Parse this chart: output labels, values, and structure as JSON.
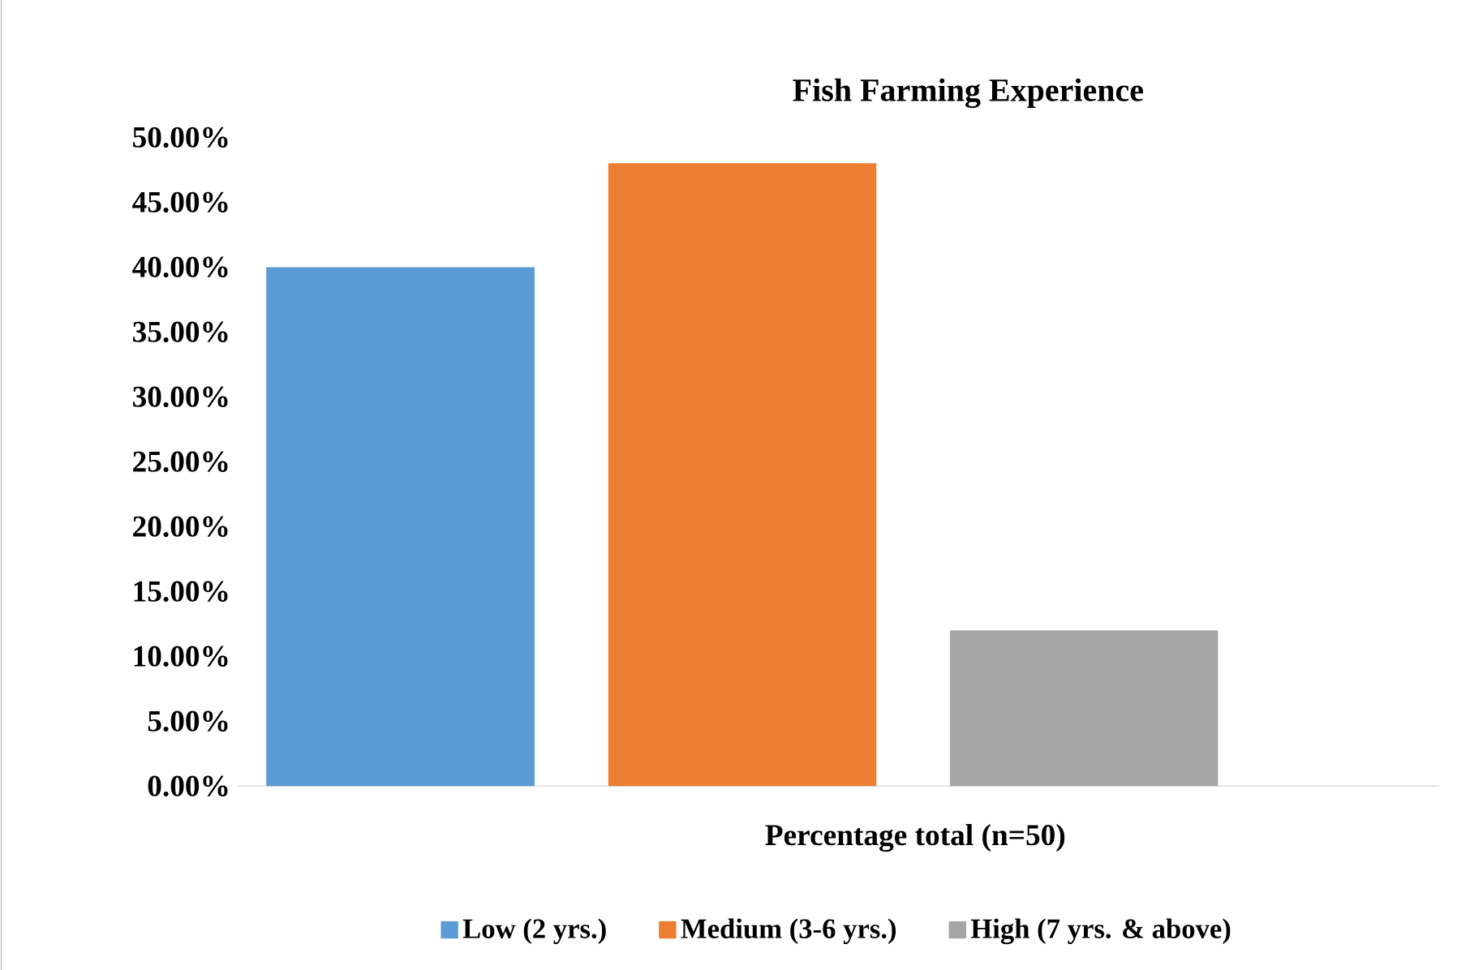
{
  "chart_data": {
    "type": "bar",
    "title": "Fish Farming Experience",
    "categories": [
      "Percentage total (n=50)"
    ],
    "series": [
      {
        "name": "Low (2 yrs.)",
        "color": "#5b9bd5",
        "values": [
          40
        ]
      },
      {
        "name": "Medium (3-6 yrs.)",
        "color": "#ed7d31",
        "values": [
          48
        ]
      },
      {
        "name": "High (7 yrs. & above)",
        "color": "#a5a5a5",
        "values": [
          12
        ]
      }
    ],
    "ylim": [
      0,
      50
    ],
    "yticks": [
      {
        "value": 0,
        "label": "0.00%"
      },
      {
        "value": 5,
        "label": "5.00%"
      },
      {
        "value": 10,
        "label": "10.00%"
      },
      {
        "value": 15,
        "label": "15.00%"
      },
      {
        "value": 20,
        "label": "20.00%"
      },
      {
        "value": 25,
        "label": "25.00%"
      },
      {
        "value": 30,
        "label": "30.00%"
      },
      {
        "value": 35,
        "label": "35.00%"
      },
      {
        "value": 40,
        "label": "40.00%"
      },
      {
        "value": 45,
        "label": "45.00%"
      },
      {
        "value": 50,
        "label": "50.00%"
      }
    ],
    "grid": false,
    "legend": "bottom"
  }
}
